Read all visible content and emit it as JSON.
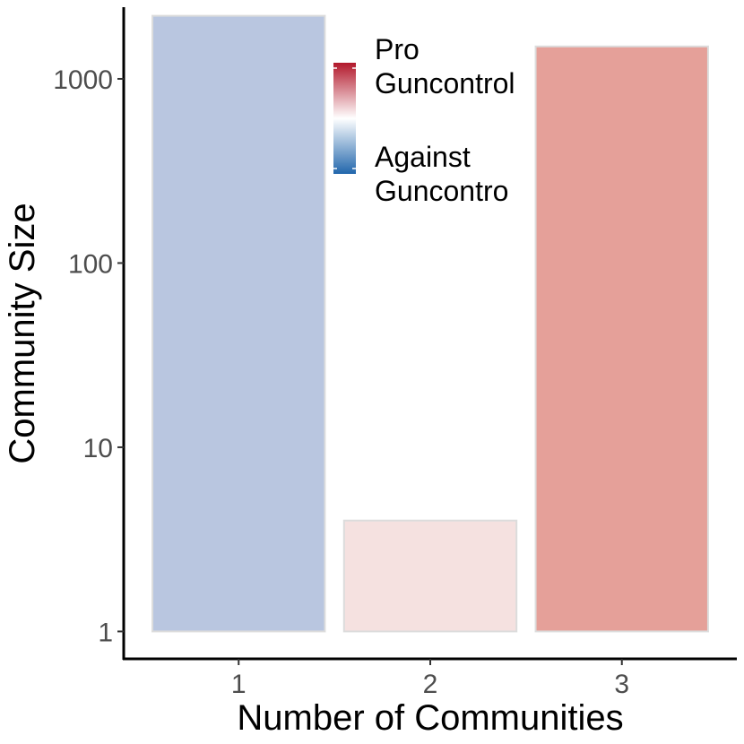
{
  "chart_data": {
    "type": "bar",
    "title": "",
    "xlabel": "Number of Communities",
    "ylabel": "Community Size",
    "y_scale": "log10",
    "ylim": [
      0.71,
      2450
    ],
    "categories": [
      "1",
      "2",
      "3"
    ],
    "values": [
      2200,
      4,
      1500
    ],
    "bar_colors": [
      "#b9c6e0",
      "#f5e1e0",
      "#e5a099"
    ],
    "y_ticks": [
      1,
      10,
      100,
      1000
    ],
    "y_tick_labels": [
      "1",
      "10",
      "100",
      "1000"
    ],
    "grid": false,
    "legend": {
      "position": "top-center",
      "type": "colorbar",
      "high_label": [
        "Pro",
        "Guncontrol"
      ],
      "low_label": [
        "Against",
        "Guncontro"
      ],
      "gradient_colors": [
        "#2166ac",
        "#ffffff",
        "#b2182b"
      ]
    }
  }
}
